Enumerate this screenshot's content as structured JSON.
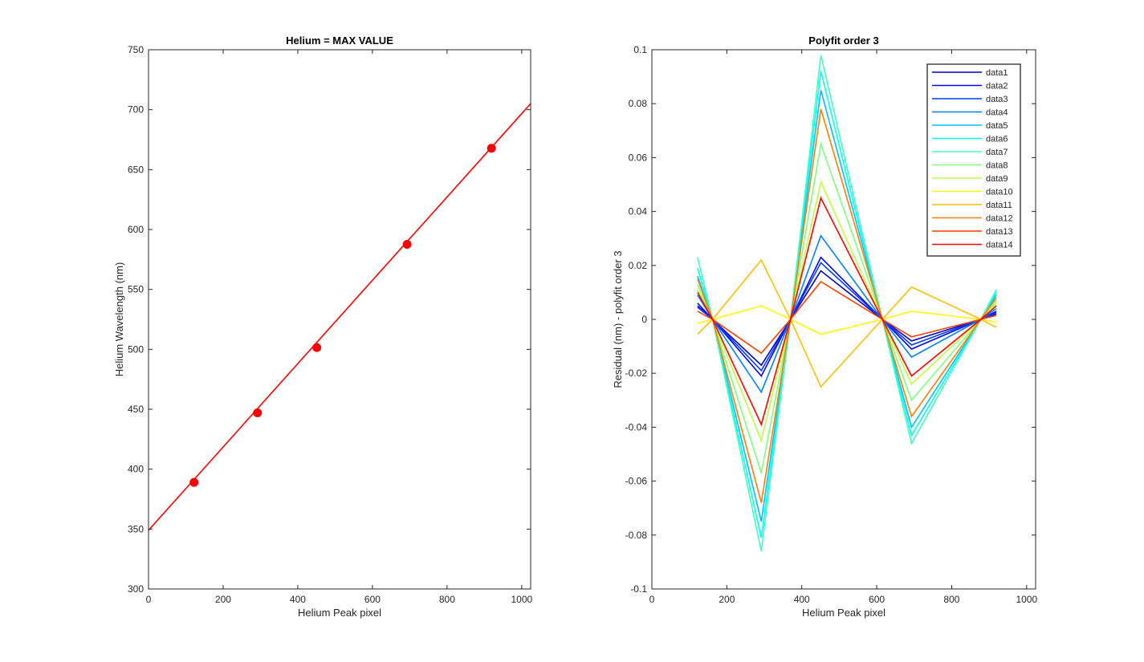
{
  "figure": {
    "background": "#ffffff"
  },
  "chart_data": [
    {
      "type": "line",
      "title": "Helium = MAX VALUE",
      "xlabel": "Helium Peak pixel",
      "ylabel": "Helium Wavelength (nm)",
      "xlim": [
        0,
        1024
      ],
      "ylim": [
        300,
        750
      ],
      "xticks": [
        0,
        200,
        400,
        600,
        800,
        1000
      ],
      "yticks": [
        300,
        350,
        400,
        450,
        500,
        550,
        600,
        650,
        700,
        750
      ],
      "grid": false,
      "series": [
        {
          "kind": "fit-line",
          "color": "#ff0000",
          "x": [
            0,
            1024
          ],
          "y": [
            349,
            705
          ]
        },
        {
          "kind": "markers",
          "color": "#ff0000",
          "x": [
            122,
            292,
            451,
            693,
            919
          ],
          "y": [
            389,
            447,
            501.5,
            587.6,
            667.8
          ]
        }
      ]
    },
    {
      "type": "line",
      "title": "Polyfit order 3",
      "xlabel": "Helium Peak pixel",
      "ylabel": "Residual (nm) - polyfit order 3",
      "xlim": [
        0,
        1024
      ],
      "ylim": [
        -0.1,
        0.1
      ],
      "xticks": [
        0,
        200,
        400,
        600,
        800,
        1000
      ],
      "yticks": [
        -0.1,
        -0.08,
        -0.06,
        -0.04,
        -0.02,
        0,
        0.02,
        0.04,
        0.06,
        0.08,
        0.1
      ],
      "grid": false,
      "legend": "top-right",
      "x": [
        122,
        162,
        292,
        370,
        451,
        615,
        693,
        878,
        919
      ],
      "series": [
        {
          "name": "data1",
          "color": "#0000c8",
          "values": [
            0.005,
            0,
            -0.017,
            0,
            0.018,
            0,
            -0.008,
            0,
            0.002
          ]
        },
        {
          "name": "data2",
          "color": "#0000ff",
          "values": [
            0.006,
            0,
            -0.021,
            0,
            0.023,
            0,
            -0.011,
            0,
            0.003
          ]
        },
        {
          "name": "data3",
          "color": "#0040ff",
          "values": [
            0.0045,
            0,
            -0.019,
            0,
            0.021,
            0,
            -0.0095,
            0,
            0.0025
          ]
        },
        {
          "name": "data4",
          "color": "#0080ff",
          "values": [
            0.009,
            0,
            -0.027,
            0,
            0.031,
            0,
            -0.014,
            0,
            0.004
          ]
        },
        {
          "name": "data5",
          "color": "#00bfff",
          "values": [
            0.016,
            0,
            -0.075,
            0,
            0.085,
            0,
            -0.04,
            0,
            0.009
          ]
        },
        {
          "name": "data6",
          "color": "#00ffff",
          "values": [
            0.019,
            0,
            -0.081,
            0,
            0.092,
            0,
            -0.043,
            0,
            0.01
          ]
        },
        {
          "name": "data7",
          "color": "#40ffbf",
          "values": [
            0.023,
            0,
            -0.086,
            0,
            0.098,
            0,
            -0.046,
            0,
            0.011
          ]
        },
        {
          "name": "data8",
          "color": "#80ff80",
          "values": [
            0.013,
            0,
            -0.057,
            0,
            0.065,
            0,
            -0.03,
            0,
            0.007
          ]
        },
        {
          "name": "data9",
          "color": "#bfff40",
          "values": [
            0.011,
            0,
            -0.045,
            0,
            0.051,
            0,
            -0.024,
            0,
            0.006
          ]
        },
        {
          "name": "data10",
          "color": "#ffff00",
          "values": [
            -0.0015,
            0,
            0.005,
            0,
            -0.0055,
            0,
            0.003,
            0,
            -0.001
          ]
        },
        {
          "name": "data11",
          "color": "#ffbf00",
          "values": [
            -0.0055,
            0,
            0.022,
            0,
            -0.025,
            0,
            0.012,
            0,
            -0.003
          ]
        },
        {
          "name": "data12",
          "color": "#ff8000",
          "values": [
            0.015,
            0,
            -0.068,
            0,
            0.078,
            0,
            -0.036,
            0,
            0.008
          ]
        },
        {
          "name": "data13",
          "color": "#ff4000",
          "values": [
            0.003,
            0,
            -0.0125,
            0,
            0.014,
            0,
            -0.0065,
            0,
            0.0015
          ]
        },
        {
          "name": "data14",
          "color": "#ff0000",
          "values": [
            0.01,
            0,
            -0.039,
            0,
            0.045,
            0,
            -0.021,
            0,
            0.005
          ]
        }
      ]
    }
  ]
}
